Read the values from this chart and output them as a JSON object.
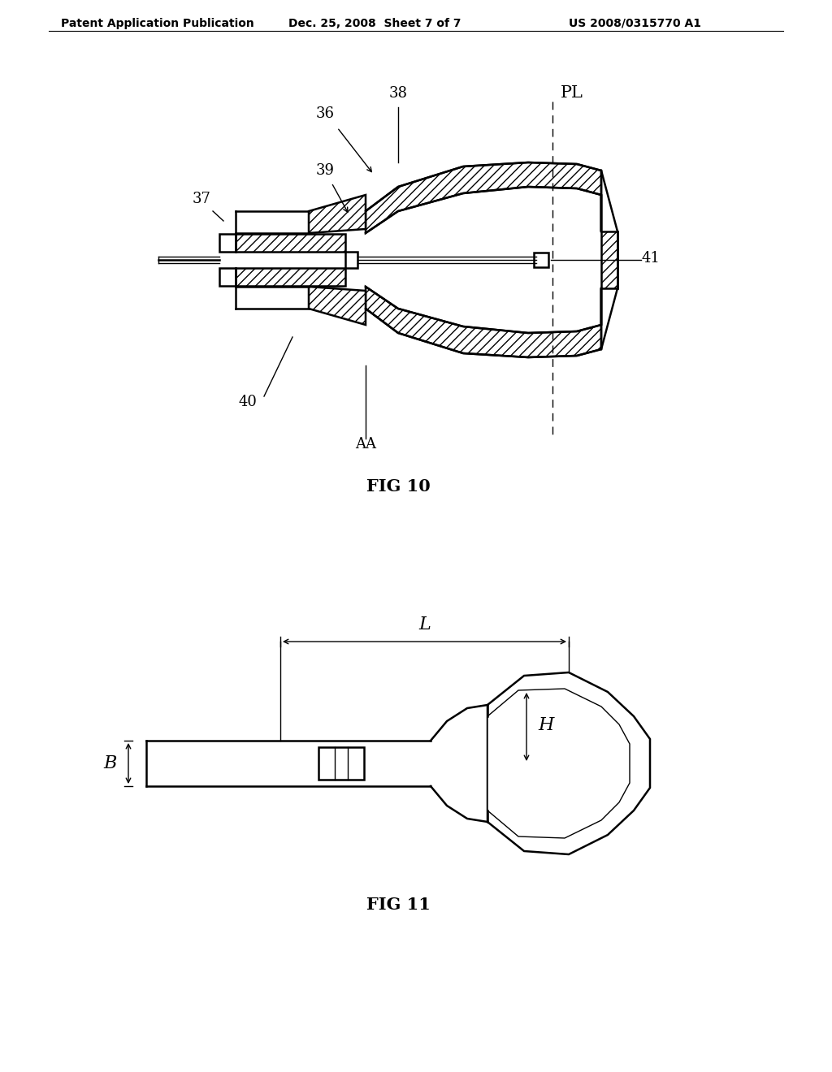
{
  "background_color": "#ffffff",
  "header_left": "Patent Application Publication",
  "header_mid": "Dec. 25, 2008  Sheet 7 of 7",
  "header_right": "US 2008/0315770 A1",
  "fig10_label": "FIG 10",
  "fig11_label": "FIG 11",
  "line_color": "#000000",
  "font_size_header": 10,
  "font_size_ref": 13,
  "font_size_figcap": 15
}
